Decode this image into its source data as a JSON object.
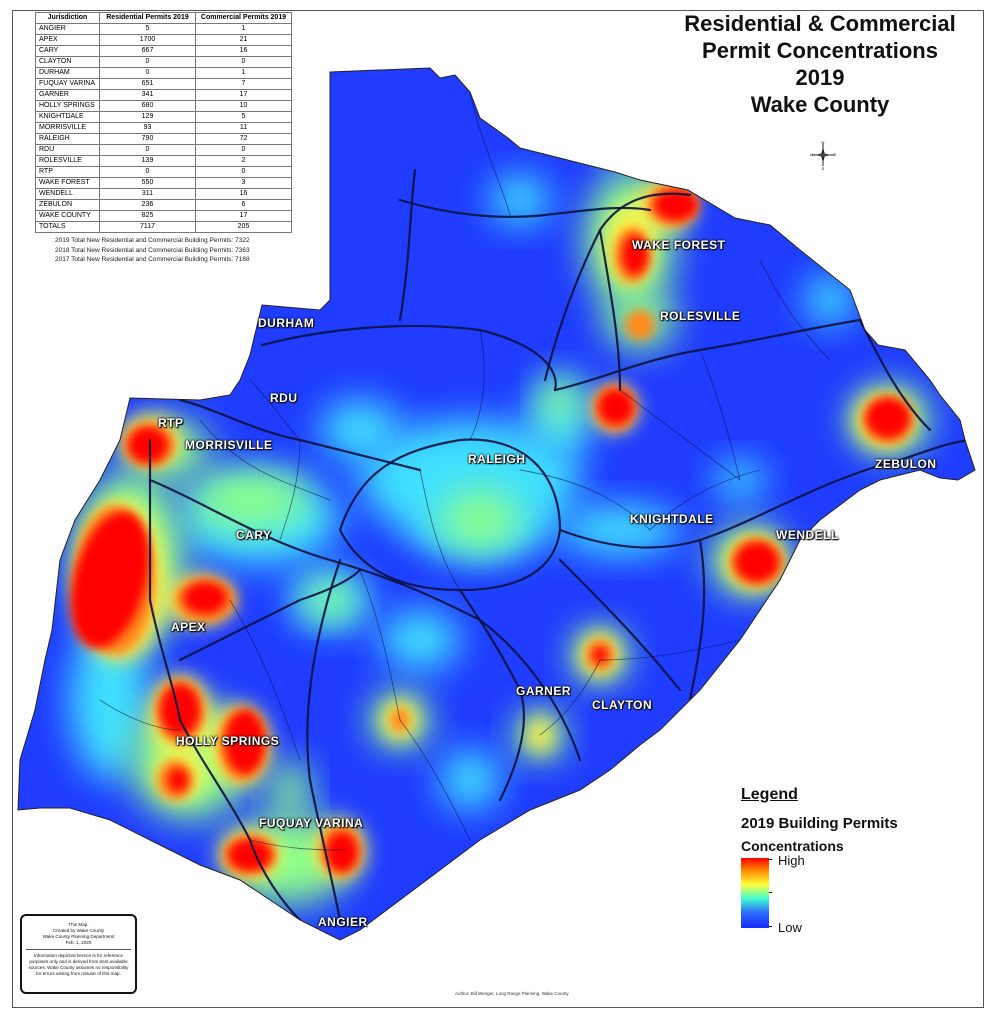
{
  "title": {
    "line1": "Residential & Commercial",
    "line2": "Permit Concentrations",
    "line3": "2019",
    "line4": "Wake County"
  },
  "table": {
    "headers": [
      "Jurisdiction",
      "Residential Permits 2019",
      "Commercial Permits 2019"
    ],
    "rows": [
      [
        "ANGIER",
        "5",
        "1"
      ],
      [
        "APEX",
        "1700",
        "21"
      ],
      [
        "CARY",
        "667",
        "16"
      ],
      [
        "CLAYTON",
        "0",
        "0"
      ],
      [
        "DURHAM",
        "0",
        "1"
      ],
      [
        "FUQUAY VARINA",
        "651",
        "7"
      ],
      [
        "GARNER",
        "341",
        "17"
      ],
      [
        "HOLLY SPRINGS",
        "680",
        "10"
      ],
      [
        "KNIGHTDALE",
        "129",
        "5"
      ],
      [
        "MORRISVILLE",
        "93",
        "11"
      ],
      [
        "RALEIGH",
        "790",
        "72"
      ],
      [
        "RDU",
        "0",
        "0"
      ],
      [
        "ROLESVILLE",
        "139",
        "2"
      ],
      [
        "RTP",
        "0",
        "0"
      ],
      [
        "WAKE FOREST",
        "550",
        "3"
      ],
      [
        "WENDELL",
        "311",
        "16"
      ],
      [
        "ZEBULON",
        "236",
        "6"
      ],
      [
        "WAKE COUNTY",
        "825",
        "17"
      ],
      [
        "TOTALS",
        "7117",
        "205"
      ]
    ]
  },
  "totals_notes": [
    "2019 Total New Residential and Commercial Building Permits: 7322",
    "2018 Total New Residential and Commercial Building Permits: 7363",
    "2017 Total New Residential and Commercial Building Permits: 7188"
  ],
  "places": {
    "wake_forest": "WAKE FOREST",
    "rolesville": "ROLESVILLE",
    "durham": "DURHAM",
    "rdu": "RDU",
    "rtp": "RTP",
    "morrisville": "MORRISVILLE",
    "raleigh": "RALEIGH",
    "zebulon": "ZEBULON",
    "knightdale": "KNIGHTDALE",
    "wendell": "WENDELL",
    "cary": "CARY",
    "apex": "APEX",
    "garner": "GARNER",
    "clayton": "CLAYTON",
    "holly_springs": "HOLLY SPRINGS",
    "fuquay_varina": "FUQUAY VARINA",
    "angier": "ANGIER"
  },
  "legend": {
    "heading": "Legend",
    "subtitle": "2019 Building Permits",
    "concentrations": "Concentrations",
    "high": "High",
    "low": "Low",
    "ramp_colors": [
      "#ff0000",
      "#ff8a00",
      "#ffff3a",
      "#40ffd0",
      "#2a6cff",
      "#1a2cff"
    ]
  },
  "info_box": {
    "line1": "This Map:",
    "line2": "Created by Wake County",
    "line3": "Wake County Planning Department",
    "line4": "Feb. 1, 2020",
    "disclaimer": "Information depicted hereon is for reference purposes only and is derived from best available sources. Wake County assumes no responsibility for errors arising from misuse of this map."
  },
  "author_credit": "Author: Bill Wenger, Long Range Planning, Wake County",
  "compass": {
    "n": "N",
    "s": "S",
    "e": "E",
    "w": "W"
  },
  "colors": {
    "base_blue": "#1f3cff",
    "hot_red": "#ff0000",
    "road_dark": "#0b1240"
  }
}
